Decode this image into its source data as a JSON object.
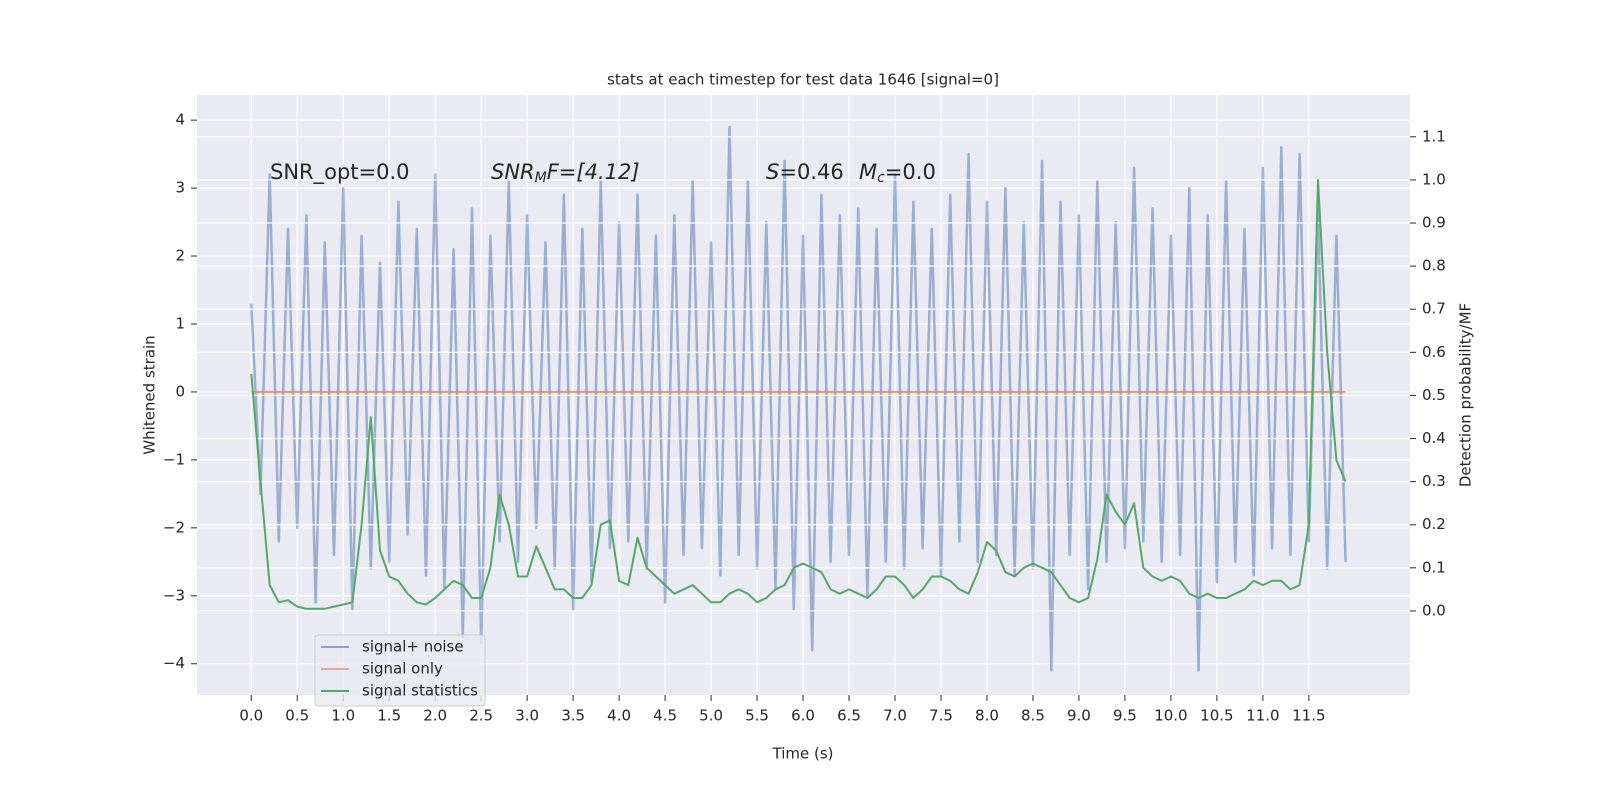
{
  "chart_data": {
    "type": "line",
    "title": "stats at each timestep for test data 1646 [signal=0]",
    "xlabel": "Time (s)",
    "ylabel": "Whitened strain",
    "y2label": "Detection probability/MF",
    "annotations": [
      {
        "main": "SNR_opt=0.0"
      },
      {
        "main": "SNR",
        "sub": "M",
        "rest": "F=[4.12]"
      },
      {
        "main": "S",
        "rest": "=0.46"
      },
      {
        "main": "M",
        "sub": "c",
        "rest": "=0.0"
      }
    ],
    "x": [
      0,
      0.1,
      0.2,
      0.3,
      0.4,
      0.5,
      0.6,
      0.7,
      0.8,
      0.9,
      1,
      1.1,
      1.2,
      1.3,
      1.4,
      1.5,
      1.6,
      1.7,
      1.8,
      1.9,
      2,
      2.1,
      2.2,
      2.3,
      2.4,
      2.5,
      2.6,
      2.7,
      2.8,
      2.9,
      3,
      3.1,
      3.2,
      3.3,
      3.4,
      3.5,
      3.6,
      3.7,
      3.8,
      3.9,
      4,
      4.1,
      4.2,
      4.3,
      4.4,
      4.5,
      4.6,
      4.7,
      4.8,
      4.9,
      5,
      5.1,
      5.2,
      5.3,
      5.4,
      5.5,
      5.6,
      5.7,
      5.8,
      5.9,
      6,
      6.1,
      6.2,
      6.3,
      6.4,
      6.5,
      6.6,
      6.7,
      6.8,
      6.9,
      7,
      7.1,
      7.2,
      7.3,
      7.4,
      7.5,
      7.6,
      7.7,
      7.8,
      7.9,
      8,
      8.1,
      8.2,
      8.3,
      8.4,
      8.5,
      8.6,
      8.7,
      8.8,
      8.9,
      9,
      9.1,
      9.2,
      9.3,
      9.4,
      9.5,
      9.6,
      9.7,
      9.8,
      9.9,
      10,
      10.1,
      10.2,
      10.3,
      10.4,
      10.5,
      10.6,
      10.7,
      10.8,
      10.9,
      11,
      11.1,
      11.2,
      11.3,
      11.4,
      11.5,
      11.6,
      11.7,
      11.8,
      11.9
    ],
    "series": [
      {
        "name": "signal+ noise",
        "color": "#4c72b0",
        "axis": "y",
        "values": [
          1.3,
          -1.5,
          3.2,
          -2.2,
          2.4,
          -2.0,
          2.6,
          -3.1,
          2.2,
          -2.4,
          3.0,
          -3.2,
          2.3,
          -2.6,
          1.9,
          -2.5,
          2.8,
          -2.1,
          2.4,
          -2.7,
          3.2,
          -2.9,
          2.1,
          -3.6,
          2.7,
          -3.7,
          2.3,
          -2.2,
          3.1,
          -2.5,
          2.6,
          -2.0,
          2.2,
          -2.6,
          2.9,
          -3.2,
          2.4,
          -2.8,
          3.1,
          -2.3,
          2.5,
          -2.2,
          2.9,
          -2.6,
          2.3,
          -3.1,
          2.6,
          -2.4,
          3.1,
          -2.3,
          2.2,
          -2.7,
          3.9,
          -2.4,
          3.1,
          -2.6,
          2.5,
          -2.9,
          3.4,
          -3.2,
          2.3,
          -3.8,
          2.9,
          -2.5,
          2.6,
          -2.4,
          2.7,
          -3.0,
          2.4,
          -2.5,
          3.2,
          -2.6,
          2.8,
          -2.3,
          2.4,
          -2.7,
          2.9,
          -2.2,
          3.5,
          -2.5,
          2.8,
          -2.4,
          3.0,
          -2.7,
          2.5,
          -2.6,
          3.4,
          -4.1,
          2.8,
          -2.4,
          2.6,
          -2.9,
          3.1,
          -2.5,
          2.5,
          -2.3,
          3.3,
          -2.2,
          2.7,
          -2.5,
          2.3,
          -2.4,
          3.0,
          -4.1,
          2.6,
          -2.8,
          3.1,
          -2.5,
          2.4,
          -2.7,
          3.3,
          -2.3,
          3.6,
          -2.4,
          3.5,
          -2.2,
          2.7,
          -2.6,
          2.3,
          -2.5
        ]
      },
      {
        "name": "signal only",
        "color": "#dd8452",
        "axis": "y",
        "x": [
          0,
          11.9
        ],
        "values": [
          0,
          0
        ]
      },
      {
        "name": "signal statistics",
        "color": "#55a868",
        "axis": "y2",
        "values": [
          0.55,
          0.3,
          0.06,
          0.02,
          0.025,
          0.01,
          0.005,
          0.005,
          0.005,
          0.01,
          0.015,
          0.02,
          0.2,
          0.45,
          0.14,
          0.08,
          0.07,
          0.04,
          0.02,
          0.015,
          0.03,
          0.05,
          0.07,
          0.06,
          0.03,
          0.03,
          0.1,
          0.27,
          0.2,
          0.08,
          0.08,
          0.15,
          0.1,
          0.05,
          0.05,
          0.03,
          0.03,
          0.06,
          0.2,
          0.21,
          0.07,
          0.06,
          0.17,
          0.1,
          0.08,
          0.06,
          0.04,
          0.05,
          0.06,
          0.04,
          0.02,
          0.02,
          0.04,
          0.05,
          0.04,
          0.02,
          0.03,
          0.05,
          0.06,
          0.1,
          0.11,
          0.1,
          0.09,
          0.05,
          0.04,
          0.05,
          0.04,
          0.03,
          0.05,
          0.08,
          0.08,
          0.06,
          0.03,
          0.05,
          0.08,
          0.08,
          0.07,
          0.05,
          0.04,
          0.09,
          0.16,
          0.14,
          0.09,
          0.08,
          0.1,
          0.11,
          0.1,
          0.09,
          0.06,
          0.03,
          0.02,
          0.03,
          0.12,
          0.27,
          0.23,
          0.2,
          0.25,
          0.1,
          0.08,
          0.07,
          0.08,
          0.07,
          0.04,
          0.03,
          0.04,
          0.03,
          0.03,
          0.04,
          0.05,
          0.07,
          0.06,
          0.07,
          0.07,
          0.05,
          0.06,
          0.2,
          1.0,
          0.6,
          0.35,
          0.3
        ]
      }
    ],
    "xlim": [
      -0.59,
      12.6
    ],
    "xticks": [
      {
        "value": 0,
        "label": "0.0"
      },
      0.5,
      {
        "value": 1,
        "label": "1.0"
      },
      1.5,
      {
        "value": 2,
        "label": "2.0"
      },
      2.5,
      {
        "value": 3,
        "label": "3.0"
      },
      3.5,
      {
        "value": 4,
        "label": "4.0"
      },
      4.5,
      {
        "value": 5,
        "label": "5.0"
      },
      5.5,
      {
        "value": 6,
        "label": "6.0"
      },
      6.5,
      {
        "value": 7,
        "label": "7.0"
      },
      7.5,
      {
        "value": 8,
        "label": "8.0"
      },
      8.5,
      {
        "value": 9,
        "label": "9.0"
      },
      9.5,
      {
        "value": 10,
        "label": "10.0"
      },
      10.5,
      {
        "value": 11,
        "label": "11.0"
      },
      11.5
    ],
    "ylim": [
      -4.46,
      4.37
    ],
    "yticks": [
      {
        "value": -4,
        "label": "−4"
      },
      {
        "value": -3,
        "label": "−3"
      },
      {
        "value": -2,
        "label": "−2"
      },
      {
        "value": -1,
        "label": "−1"
      },
      0,
      1,
      2,
      3,
      4
    ],
    "y2lim": [
      -0.195,
      1.197
    ],
    "y2ticks": [
      {
        "value": 0,
        "label": "0.0"
      },
      0.1,
      0.2,
      0.3,
      0.4,
      0.5,
      0.6,
      0.7,
      0.8,
      0.9,
      {
        "value": 1,
        "label": "1.0"
      },
      1.1
    ],
    "grid": true,
    "legend": "lower left"
  }
}
